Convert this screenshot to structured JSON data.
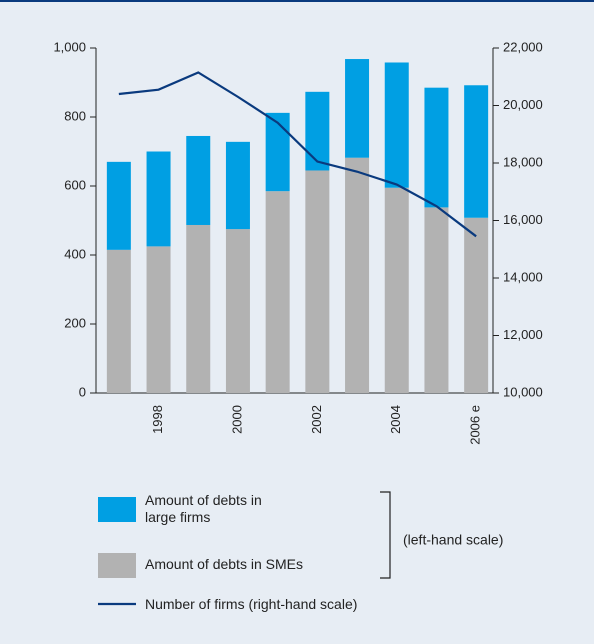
{
  "chart_data": {
    "type": "bar",
    "categories": [
      null,
      "1998",
      null,
      "2000",
      null,
      "2002",
      null,
      "2004",
      null,
      "2006 e"
    ],
    "series": [
      {
        "name": "Amount of debts in SMEs",
        "color": "#b2b2b2",
        "values": [
          415,
          425,
          487,
          475,
          585,
          645,
          682,
          595,
          538,
          508
        ]
      },
      {
        "name": "Amount of debts in large firms",
        "color": "#009fe3",
        "values": [
          255,
          275,
          258,
          253,
          227,
          228,
          286,
          363,
          347,
          384
        ]
      },
      {
        "name": "Number of firms (right-hand scale)",
        "color": "#0a3a7e",
        "type": "line",
        "axis": "y2",
        "values": [
          20400,
          20550,
          21150,
          20300,
          19400,
          18050,
          17700,
          17250,
          16500,
          15450
        ]
      }
    ],
    "stacked": true,
    "annotation": "(left-hand scale)",
    "ylim": [
      0,
      1000
    ],
    "yticks": [
      0,
      200,
      400,
      600,
      800,
      {
        "value": 1000,
        "label": "1,000"
      }
    ],
    "y2lim": [
      10000,
      22000
    ],
    "y2ticks": [
      {
        "value": 10000,
        "label": "10,000"
      },
      {
        "value": 12000,
        "label": "12,000"
      },
      {
        "value": 14000,
        "label": "14,000"
      },
      {
        "value": 16000,
        "label": "16,000"
      },
      {
        "value": 18000,
        "label": "18,000"
      },
      {
        "value": 20000,
        "label": "20,000"
      },
      {
        "value": 22000,
        "label": "22,000"
      }
    ],
    "grid": false
  }
}
